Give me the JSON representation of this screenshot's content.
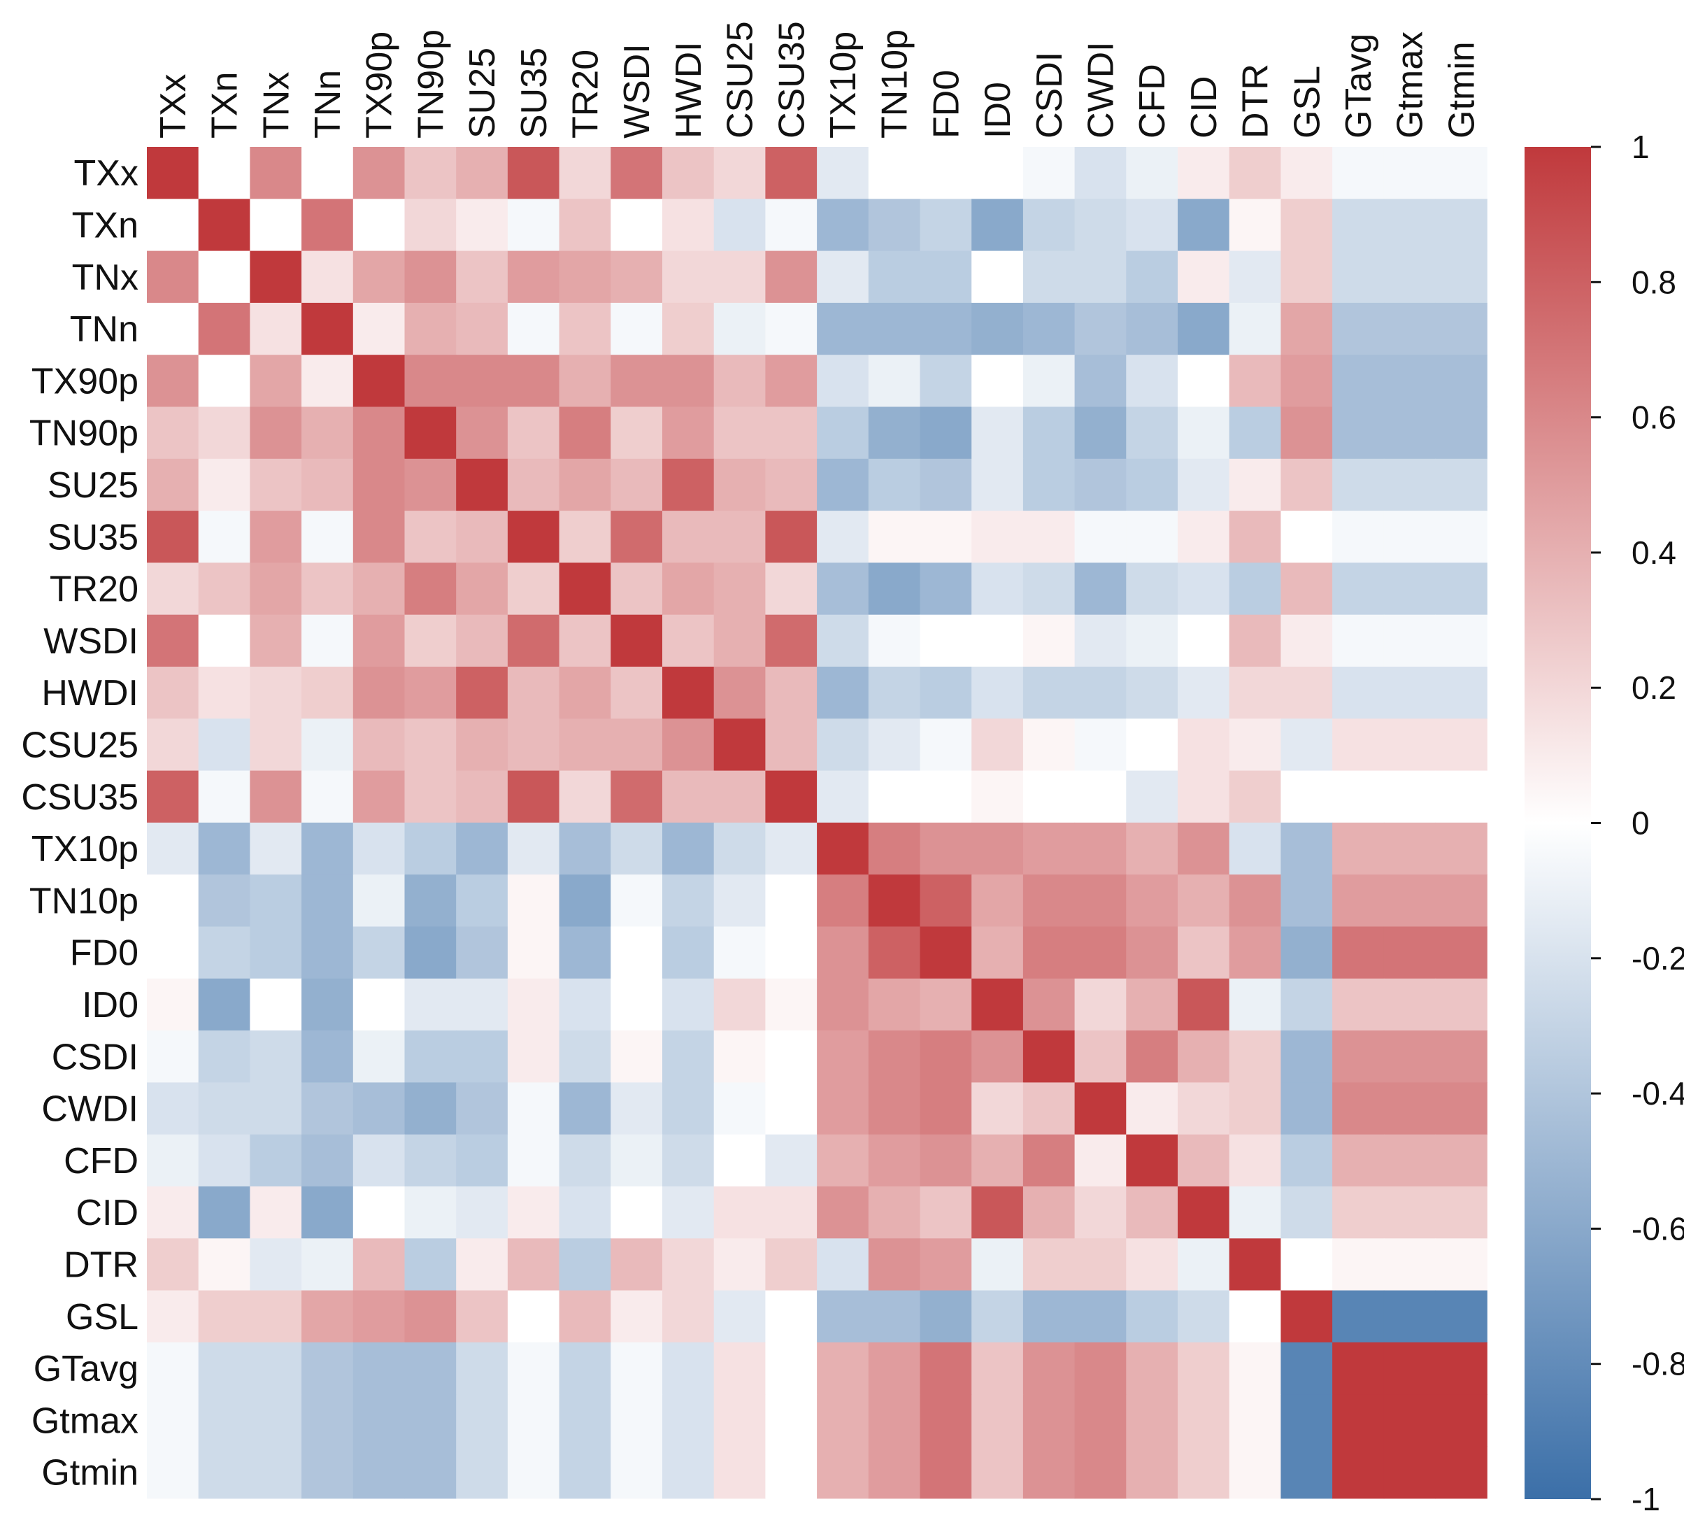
{
  "chart_data": {
    "type": "heatmap",
    "title": "",
    "labels": [
      "TXx",
      "TXn",
      "TNx",
      "TNn",
      "TX90p",
      "TN90p",
      "SU25",
      "SU35",
      "TR20",
      "WSDI",
      "HWDI",
      "CSU25",
      "CSU35",
      "TX10p",
      "TN10p",
      "FD0",
      "ID0",
      "CSDI",
      "CWDI",
      "CFD",
      "CID",
      "DTR",
      "GSL",
      "GTavg",
      "Gtmax",
      "Gtmin"
    ],
    "matrix": [
      [
        1,
        0.0,
        0.6,
        0.0,
        0.55,
        0.3,
        0.4,
        0.85,
        0.2,
        0.7,
        0.3,
        0.2,
        0.8,
        -0.15,
        0.0,
        0.0,
        0.0,
        -0.05,
        -0.2,
        -0.1,
        0.1,
        0.25,
        0.1,
        -0.05,
        -0.05,
        -0.05
      ],
      [
        0.0,
        1,
        0.0,
        0.7,
        0.0,
        0.2,
        0.1,
        -0.05,
        0.3,
        0.0,
        0.15,
        -0.2,
        -0.05,
        -0.5,
        -0.4,
        -0.3,
        -0.6,
        -0.3,
        -0.25,
        -0.2,
        -0.6,
        0.05,
        0.25,
        -0.25,
        -0.25,
        -0.25
      ],
      [
        0.6,
        0.0,
        1,
        0.15,
        0.45,
        0.55,
        0.3,
        0.5,
        0.45,
        0.4,
        0.2,
        0.2,
        0.55,
        -0.15,
        -0.35,
        -0.35,
        0.0,
        -0.25,
        -0.25,
        -0.35,
        0.1,
        -0.15,
        0.25,
        -0.25,
        -0.25,
        -0.25
      ],
      [
        0.0,
        0.7,
        0.15,
        1,
        0.1,
        0.4,
        0.35,
        -0.05,
        0.3,
        -0.05,
        0.25,
        -0.1,
        -0.05,
        -0.5,
        -0.5,
        -0.5,
        -0.55,
        -0.5,
        -0.4,
        -0.45,
        -0.6,
        -0.1,
        0.45,
        -0.4,
        -0.4,
        -0.4
      ],
      [
        0.55,
        0.0,
        0.45,
        0.1,
        1,
        0.6,
        0.6,
        0.6,
        0.4,
        0.55,
        0.55,
        0.35,
        0.5,
        -0.2,
        -0.1,
        -0.3,
        0.0,
        -0.1,
        -0.45,
        -0.2,
        0.0,
        0.35,
        0.5,
        -0.45,
        -0.45,
        -0.45
      ],
      [
        0.3,
        0.2,
        0.55,
        0.4,
        0.6,
        1,
        0.55,
        0.3,
        0.65,
        0.25,
        0.5,
        0.3,
        0.3,
        -0.35,
        -0.55,
        -0.6,
        -0.15,
        -0.35,
        -0.55,
        -0.3,
        -0.1,
        -0.35,
        0.55,
        -0.45,
        -0.45,
        -0.45
      ],
      [
        0.4,
        0.1,
        0.3,
        0.35,
        0.6,
        0.55,
        1,
        0.35,
        0.45,
        0.35,
        0.8,
        0.4,
        0.35,
        -0.5,
        -0.35,
        -0.4,
        -0.15,
        -0.35,
        -0.4,
        -0.35,
        -0.15,
        0.1,
        0.3,
        -0.25,
        -0.25,
        -0.25
      ],
      [
        0.85,
        -0.05,
        0.5,
        -0.05,
        0.6,
        0.3,
        0.35,
        1,
        0.25,
        0.75,
        0.35,
        0.35,
        0.85,
        -0.15,
        0.05,
        0.05,
        0.1,
        0.1,
        -0.05,
        -0.05,
        0.1,
        0.35,
        0.0,
        -0.05,
        -0.05,
        -0.05
      ],
      [
        0.2,
        0.3,
        0.45,
        0.3,
        0.4,
        0.65,
        0.45,
        0.25,
        1,
        0.3,
        0.45,
        0.4,
        0.2,
        -0.45,
        -0.6,
        -0.5,
        -0.2,
        -0.25,
        -0.5,
        -0.25,
        -0.2,
        -0.35,
        0.35,
        -0.3,
        -0.3,
        -0.3
      ],
      [
        0.7,
        0.0,
        0.4,
        -0.05,
        0.5,
        0.25,
        0.35,
        0.75,
        0.3,
        1,
        0.3,
        0.4,
        0.75,
        -0.25,
        -0.05,
        0.0,
        0.0,
        0.05,
        -0.15,
        -0.1,
        0.0,
        0.35,
        0.1,
        -0.05,
        -0.05,
        -0.05
      ],
      [
        0.3,
        0.15,
        0.2,
        0.25,
        0.55,
        0.5,
        0.8,
        0.35,
        0.45,
        0.3,
        1,
        0.55,
        0.35,
        -0.5,
        -0.3,
        -0.35,
        -0.2,
        -0.3,
        -0.3,
        -0.25,
        -0.15,
        0.2,
        0.2,
        -0.2,
        -0.2,
        -0.2
      ],
      [
        0.2,
        -0.2,
        0.2,
        -0.1,
        0.35,
        0.3,
        0.4,
        0.35,
        0.4,
        0.4,
        0.55,
        1,
        0.35,
        -0.25,
        -0.15,
        -0.05,
        0.2,
        0.05,
        -0.05,
        0.0,
        0.15,
        0.1,
        -0.15,
        0.15,
        0.15,
        0.15
      ],
      [
        0.8,
        -0.05,
        0.55,
        -0.05,
        0.5,
        0.3,
        0.35,
        0.85,
        0.2,
        0.75,
        0.35,
        0.35,
        1,
        -0.15,
        0.0,
        0.0,
        0.05,
        0.0,
        0.0,
        -0.15,
        0.15,
        0.25,
        0.0,
        0.0,
        0.0,
        0.0
      ],
      [
        -0.15,
        -0.5,
        -0.15,
        -0.5,
        -0.2,
        -0.35,
        -0.5,
        -0.15,
        -0.45,
        -0.25,
        -0.5,
        -0.25,
        -0.15,
        1,
        0.65,
        0.55,
        0.55,
        0.5,
        0.5,
        0.4,
        0.55,
        -0.2,
        -0.45,
        0.4,
        0.4,
        0.4
      ],
      [
        0.0,
        -0.4,
        -0.35,
        -0.5,
        -0.1,
        -0.55,
        -0.35,
        0.05,
        -0.6,
        -0.05,
        -0.3,
        -0.15,
        0.0,
        0.65,
        1,
        0.8,
        0.45,
        0.6,
        0.6,
        0.5,
        0.4,
        0.55,
        -0.45,
        0.5,
        0.5,
        0.5
      ],
      [
        0.0,
        -0.3,
        -0.35,
        -0.5,
        -0.3,
        -0.6,
        -0.4,
        0.05,
        -0.5,
        0.0,
        -0.35,
        -0.05,
        0.0,
        0.55,
        0.8,
        1,
        0.4,
        0.65,
        0.65,
        0.55,
        0.3,
        0.5,
        -0.55,
        0.7,
        0.7,
        0.7
      ],
      [
        0.05,
        -0.6,
        0.0,
        -0.55,
        0.0,
        -0.15,
        -0.15,
        0.1,
        -0.2,
        0.0,
        -0.2,
        0.2,
        0.05,
        0.55,
        0.45,
        0.4,
        1,
        0.55,
        0.2,
        0.4,
        0.85,
        -0.1,
        -0.3,
        0.3,
        0.3,
        0.3
      ],
      [
        -0.05,
        -0.3,
        -0.25,
        -0.5,
        -0.1,
        -0.35,
        -0.35,
        0.1,
        -0.25,
        0.05,
        -0.3,
        0.05,
        0.0,
        0.5,
        0.6,
        0.65,
        0.55,
        1,
        0.3,
        0.65,
        0.4,
        0.25,
        -0.5,
        0.55,
        0.55,
        0.55
      ],
      [
        -0.2,
        -0.25,
        -0.25,
        -0.4,
        -0.45,
        -0.55,
        -0.4,
        -0.05,
        -0.5,
        -0.15,
        -0.3,
        -0.05,
        0.0,
        0.5,
        0.6,
        0.65,
        0.2,
        0.3,
        1,
        0.1,
        0.2,
        0.25,
        -0.5,
        0.6,
        0.6,
        0.6
      ],
      [
        -0.1,
        -0.2,
        -0.35,
        -0.45,
        -0.2,
        -0.3,
        -0.35,
        -0.05,
        -0.25,
        -0.1,
        -0.25,
        0.0,
        -0.15,
        0.4,
        0.5,
        0.55,
        0.4,
        0.65,
        0.1,
        1,
        0.35,
        0.15,
        -0.35,
        0.4,
        0.4,
        0.4
      ],
      [
        0.1,
        -0.6,
        0.1,
        -0.6,
        0.0,
        -0.1,
        -0.15,
        0.1,
        -0.2,
        0.0,
        -0.15,
        0.15,
        0.15,
        0.55,
        0.4,
        0.3,
        0.85,
        0.4,
        0.2,
        0.35,
        1,
        -0.1,
        -0.25,
        0.25,
        0.25,
        0.25
      ],
      [
        0.25,
        0.05,
        -0.15,
        -0.1,
        0.35,
        -0.35,
        0.1,
        0.35,
        -0.35,
        0.35,
        0.2,
        0.1,
        0.25,
        -0.2,
        0.55,
        0.5,
        -0.1,
        0.25,
        0.25,
        0.15,
        -0.1,
        1,
        0.0,
        0.05,
        0.05,
        0.05
      ],
      [
        0.1,
        0.25,
        0.25,
        0.45,
        0.5,
        0.55,
        0.3,
        0.0,
        0.35,
        0.1,
        0.2,
        -0.15,
        0.0,
        -0.45,
        -0.45,
        -0.55,
        -0.3,
        -0.5,
        -0.5,
        -0.35,
        -0.25,
        0.0,
        1,
        -0.85,
        -0.85,
        -0.85
      ],
      [
        -0.05,
        -0.25,
        -0.25,
        -0.4,
        -0.45,
        -0.45,
        -0.25,
        -0.05,
        -0.3,
        -0.05,
        -0.2,
        0.15,
        0.0,
        0.4,
        0.5,
        0.7,
        0.3,
        0.55,
        0.6,
        0.4,
        0.25,
        0.05,
        -0.85,
        1,
        1,
        1
      ],
      [
        -0.05,
        -0.25,
        -0.25,
        -0.4,
        -0.45,
        -0.45,
        -0.25,
        -0.05,
        -0.3,
        -0.05,
        -0.2,
        0.15,
        0.0,
        0.4,
        0.5,
        0.7,
        0.3,
        0.55,
        0.6,
        0.4,
        0.25,
        0.05,
        -0.85,
        1,
        1,
        1
      ],
      [
        -0.05,
        -0.25,
        -0.25,
        -0.4,
        -0.45,
        -0.45,
        -0.25,
        -0.05,
        -0.3,
        -0.05,
        -0.2,
        0.15,
        0.0,
        0.4,
        0.5,
        0.7,
        0.3,
        0.55,
        0.6,
        0.4,
        0.25,
        0.05,
        -0.85,
        1,
        1,
        1
      ]
    ],
    "colorbar": {
      "range": [
        -1,
        1
      ],
      "ticks": [
        "1",
        "0.8",
        "0.6",
        "0.4",
        "0.2",
        "0",
        "-0.2",
        "-0.4",
        "-0.6",
        "-0.8",
        "-1"
      ]
    },
    "colors": {
      "negative": "#3b6fa8",
      "neutral": "#ffffff",
      "positive": "#c0393c"
    }
  }
}
